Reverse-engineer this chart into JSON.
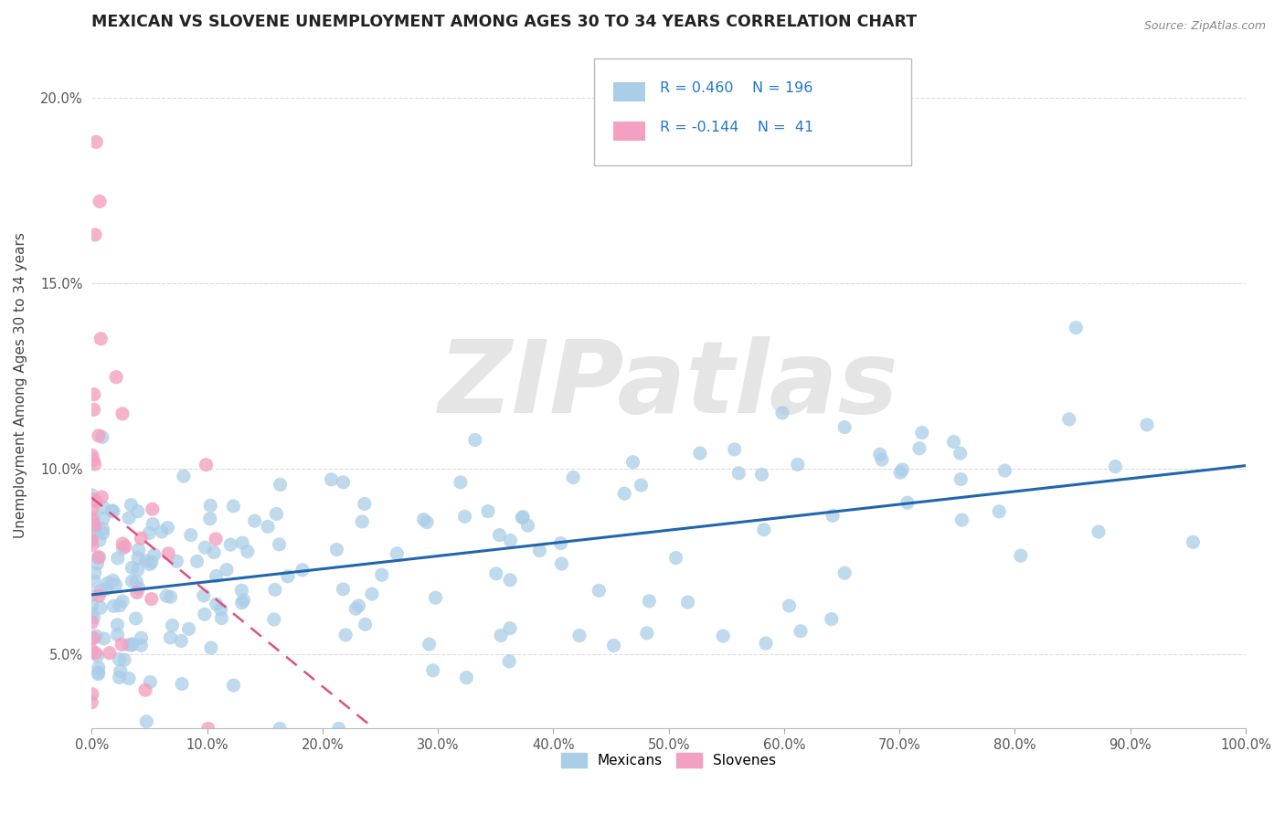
{
  "title": "MEXICAN VS SLOVENE UNEMPLOYMENT AMONG AGES 30 TO 34 YEARS CORRELATION CHART",
  "source": "Source: ZipAtlas.com",
  "ylabel": "Unemployment Among Ages 30 to 34 years",
  "xlim": [
    0,
    1.0
  ],
  "ylim": [
    0.03,
    0.215
  ],
  "xticks": [
    0.0,
    0.1,
    0.2,
    0.3,
    0.4,
    0.5,
    0.6,
    0.7,
    0.8,
    0.9,
    1.0
  ],
  "xtick_labels": [
    "0.0%",
    "10.0%",
    "20.0%",
    "30.0%",
    "40.0%",
    "50.0%",
    "60.0%",
    "70.0%",
    "80.0%",
    "90.0%",
    "100.0%"
  ],
  "yticks": [
    0.05,
    0.1,
    0.15,
    0.2
  ],
  "ytick_labels": [
    "5.0%",
    "10.0%",
    "15.0%",
    "20.0%"
  ],
  "mexican_R": 0.46,
  "mexican_N": 196,
  "slovene_R": -0.144,
  "slovene_N": 41,
  "mexican_color": "#aacde8",
  "slovene_color": "#f4a0c0",
  "trend_mexican_color": "#2166ac",
  "trend_slovene_color": "#e05080",
  "watermark": "ZIPatlas",
  "watermark_color": "#cccccc",
  "background_color": "#ffffff",
  "grid_color": "#dddddd",
  "title_color": "#222222",
  "legend_text_color": "#2277cc",
  "seed": 42
}
